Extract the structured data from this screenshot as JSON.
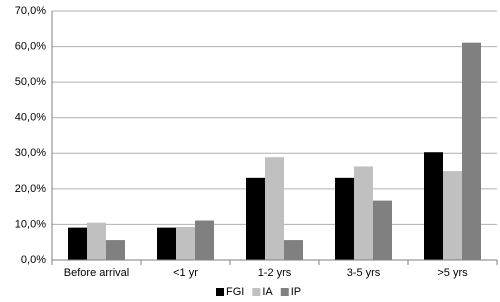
{
  "chart_data": {
    "type": "bar",
    "categories": [
      "Before arrival",
      "<1 yr",
      "1-2 yrs",
      "3-5 yrs",
      ">5 yrs"
    ],
    "series": [
      {
        "name": "FGI",
        "color": "#000000",
        "values": [
          9.1,
          9.1,
          23.1,
          23.1,
          30.3
        ]
      },
      {
        "name": "IA",
        "color": "#c0c0c0",
        "values": [
          10.5,
          9.3,
          28.9,
          26.3,
          25.0
        ]
      },
      {
        "name": "IP",
        "color": "#808080",
        "values": [
          5.6,
          11.1,
          5.6,
          16.7,
          61.1
        ]
      }
    ],
    "ylim": [
      0,
      70
    ],
    "yticks": [
      {
        "value": 0,
        "label": "0,0%"
      },
      {
        "value": 10,
        "label": "10,0%"
      },
      {
        "value": 20,
        "label": "20,0%"
      },
      {
        "value": 30,
        "label": "30,0%"
      },
      {
        "value": 40,
        "label": "40,0%"
      },
      {
        "value": 50,
        "label": "50,0%"
      },
      {
        "value": 60,
        "label": "60,0%"
      },
      {
        "value": 70,
        "label": "70,0%"
      }
    ],
    "grid": true,
    "legend": "bottom"
  }
}
